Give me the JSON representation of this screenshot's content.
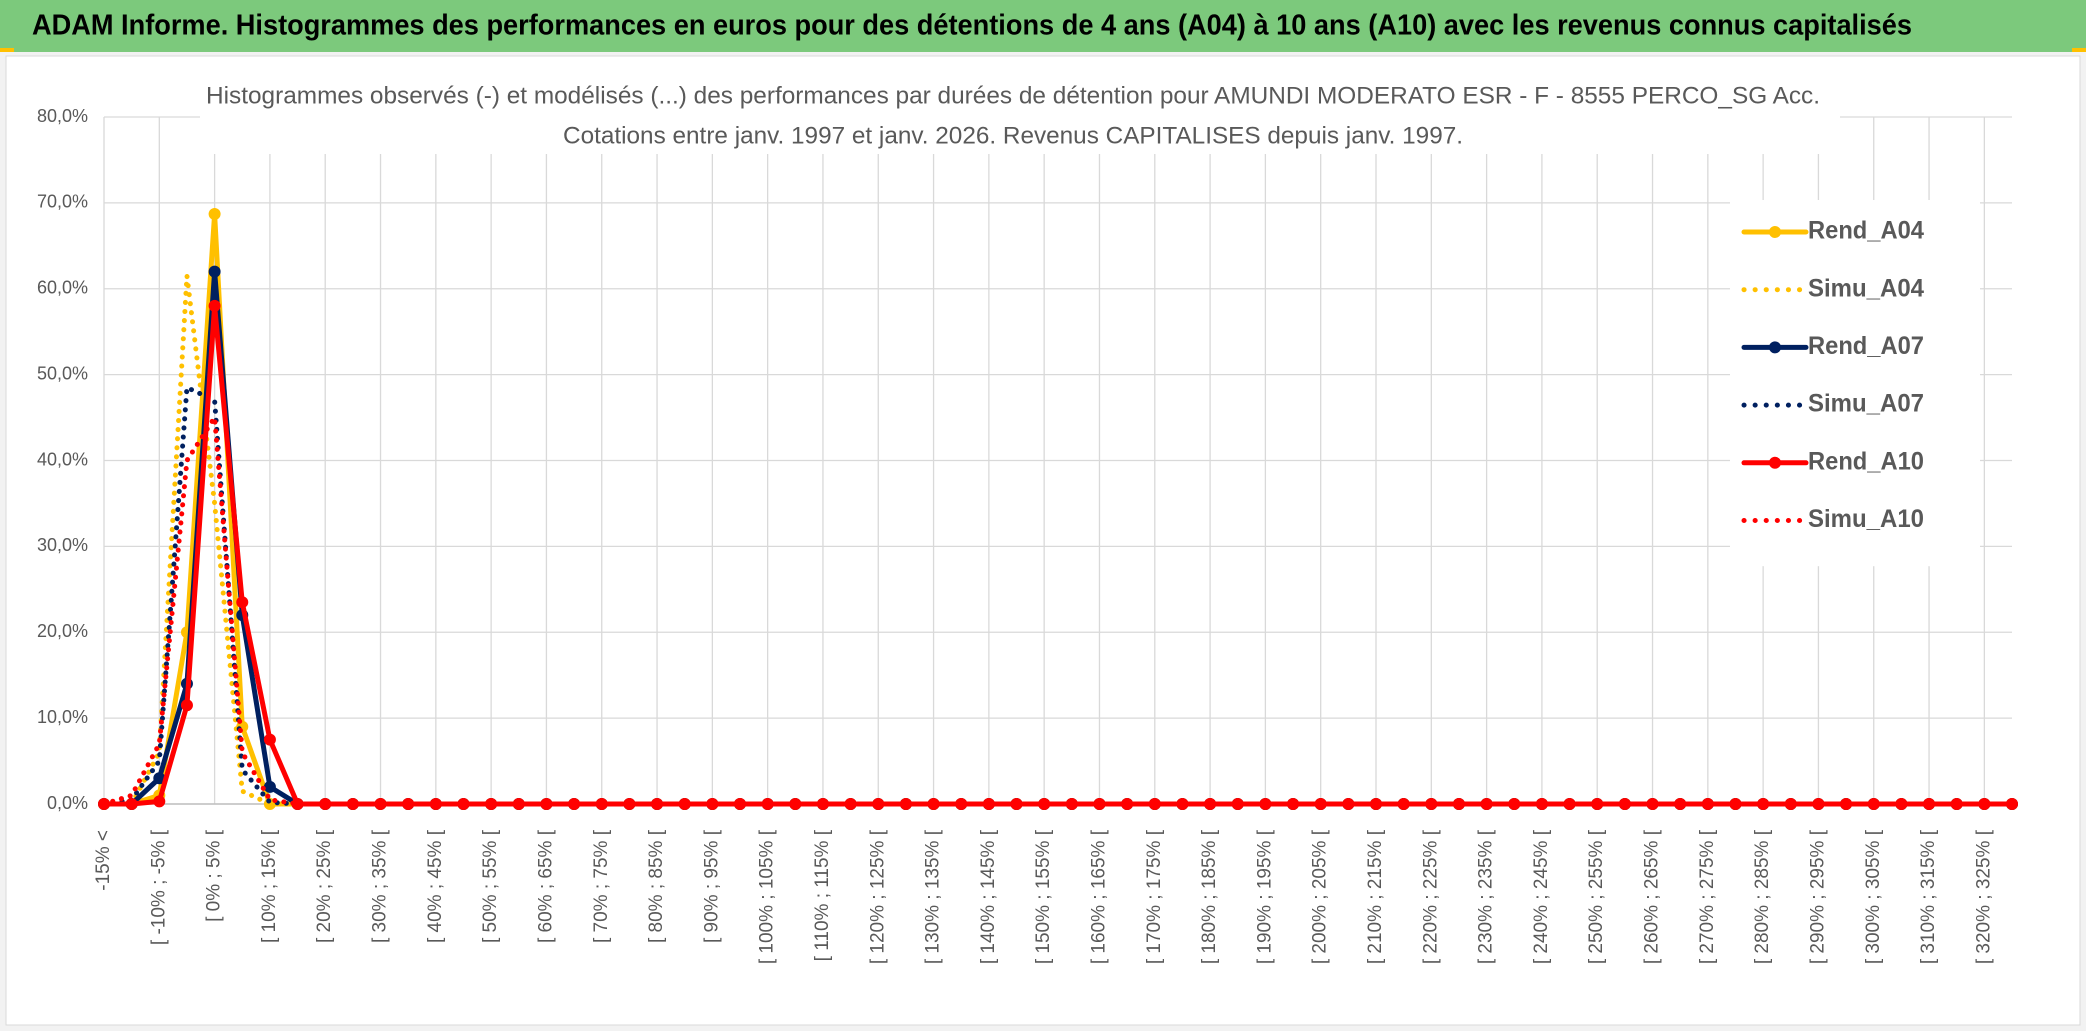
{
  "page_title": "ADAM Informe. Histogrammes des performances en euros pour des détentions de 4 ans (A04) à 10 ans (A10) avec les revenus connus capitalisés",
  "chart_data": {
    "type": "line",
    "title": "Histogrammes observés (-) et modélisés (...) des performances par durées de détention pour AMUNDI MODERATO ESR - F - 8555 PERCO_SG Acc.",
    "subtitle": "Cotations entre janv. 1997 et janv. 2026. Revenus CAPITALISES depuis janv. 1997.",
    "categories": [
      "-15% <",
      null,
      "[ -10% ; -5% [",
      null,
      "[ 0% ; 5% [",
      null,
      "[ 10% ; 15% [",
      null,
      "[ 20% ; 25% [",
      null,
      "[ 30% ; 35% [",
      null,
      "[ 40% ; 45% [",
      null,
      "[ 50% ; 55% [",
      null,
      "[ 60% ; 65% [",
      null,
      "[ 70% ; 75% [",
      null,
      "[ 80% ; 85% [",
      null,
      "[ 90% ; 95% [",
      null,
      "[ 100% ; 105% [",
      null,
      "[ 110% ; 115% [",
      null,
      "[ 120% ; 125% [",
      null,
      "[ 130% ; 135% [",
      null,
      "[ 140% ; 145% [",
      null,
      "[ 150% ; 155% [",
      null,
      "[ 160% ; 165% [",
      null,
      "[ 170% ; 175% [",
      null,
      "[ 180% ; 185% [",
      null,
      "[ 190% ; 195% [",
      null,
      "[ 200% ; 205% [",
      null,
      "[ 210% ; 215% [",
      null,
      "[ 220% ; 225% [",
      null,
      "[ 230% ; 235% [",
      null,
      "[ 240% ; 245% [",
      null,
      "[ 250% ; 255% [",
      null,
      "[ 260% ; 265% [",
      null,
      "[ 270% ; 275% [",
      null,
      "[ 280% ; 285% [",
      null,
      "[ 290% ; 295% [",
      null,
      "[ 300% ; 305% [",
      null,
      "[ 310% ; 315% [",
      null,
      "[ 320% ; 325% [",
      null
    ],
    "ylim": [
      0,
      80
    ],
    "yticks": [
      {
        "value": 0,
        "label": "0,0%"
      },
      {
        "value": 10,
        "label": "10,0%"
      },
      {
        "value": 20,
        "label": "20,0%"
      },
      {
        "value": 30,
        "label": "30,0%"
      },
      {
        "value": 40,
        "label": "40,0%"
      },
      {
        "value": 50,
        "label": "50,0%"
      },
      {
        "value": 60,
        "label": "60,0%"
      },
      {
        "value": 70,
        "label": "70,0%"
      },
      {
        "value": 80,
        "label": "80,0%"
      }
    ],
    "grid": true,
    "legend": "right",
    "series": [
      {
        "name": "Rend_A04",
        "color": "#ffc000",
        "style": "solid",
        "markers": true,
        "values": [
          0,
          0,
          1,
          20,
          68.7,
          9,
          0,
          0,
          0,
          0,
          0,
          0,
          0,
          0,
          0,
          0,
          0,
          0,
          0,
          0,
          0,
          0,
          0,
          0,
          0,
          0,
          0,
          0,
          0,
          0,
          0,
          0,
          0,
          0,
          0,
          0,
          0,
          0,
          0,
          0,
          0,
          0,
          0,
          0,
          0,
          0,
          0,
          0,
          0,
          0,
          0,
          0,
          0,
          0,
          0,
          0,
          0,
          0,
          0,
          0,
          0,
          0,
          0,
          0,
          0,
          0,
          0,
          0,
          0,
          0
        ]
      },
      {
        "name": "Simu_A04",
        "color": "#ffc000",
        "style": "dotted",
        "markers": false,
        "values": [
          0,
          0,
          6,
          61.5,
          35,
          1.5,
          0,
          0,
          0,
          0,
          0,
          0,
          0,
          0,
          0,
          0,
          0,
          0,
          0,
          0,
          0,
          0,
          0,
          0,
          0,
          0,
          0,
          0,
          0,
          0,
          0,
          0,
          0,
          0,
          0,
          0,
          0,
          0,
          0,
          0,
          0,
          0,
          0,
          0,
          0,
          0,
          0,
          0,
          0,
          0,
          0,
          0,
          0,
          0,
          0,
          0,
          0,
          0,
          0,
          0,
          0,
          0,
          0,
          0,
          0,
          0,
          0,
          0,
          0,
          0
        ]
      },
      {
        "name": "Rend_A07",
        "color": "#002060",
        "style": "solid",
        "markers": true,
        "values": [
          0,
          0,
          3,
          14,
          62,
          22,
          2,
          0,
          0,
          0,
          0,
          0,
          0,
          0,
          0,
          0,
          0,
          0,
          0,
          0,
          0,
          0,
          0,
          0,
          0,
          0,
          0,
          0,
          0,
          0,
          0,
          0,
          0,
          0,
          0,
          0,
          0,
          0,
          0,
          0,
          0,
          0,
          0,
          0,
          0,
          0,
          0,
          0,
          0,
          0,
          0,
          0,
          0,
          0,
          0,
          0,
          0,
          0,
          0,
          0,
          0,
          0,
          0,
          0,
          0,
          0,
          0,
          0,
          0,
          0
        ]
      },
      {
        "name": "Simu_A07",
        "color": "#002060",
        "style": "dotted",
        "markers": false,
        "values": [
          0,
          0.5,
          5,
          48.5,
          47,
          4,
          0.2,
          0,
          0,
          0,
          0,
          0,
          0,
          0,
          0,
          0,
          0,
          0,
          0,
          0,
          0,
          0,
          0,
          0,
          0,
          0,
          0,
          0,
          0,
          0,
          0,
          0,
          0,
          0,
          0,
          0,
          0,
          0,
          0,
          0,
          0,
          0,
          0,
          0,
          0,
          0,
          0,
          0,
          0,
          0,
          0,
          0,
          0,
          0,
          0,
          0,
          0,
          0,
          0,
          0,
          0,
          0,
          0,
          0,
          0,
          0,
          0,
          0,
          0,
          0
        ]
      },
      {
        "name": "Rend_A10",
        "color": "#ff0000",
        "style": "solid",
        "markers": true,
        "values": [
          0,
          0,
          0.3,
          11.5,
          58,
          23.5,
          7.5,
          0,
          0,
          0,
          0,
          0,
          0,
          0,
          0,
          0,
          0,
          0,
          0,
          0,
          0,
          0,
          0,
          0,
          0,
          0,
          0,
          0,
          0,
          0,
          0,
          0,
          0,
          0,
          0,
          0,
          0,
          0,
          0,
          0,
          0,
          0,
          0,
          0,
          0,
          0,
          0,
          0,
          0,
          0,
          0,
          0,
          0,
          0,
          0,
          0,
          0,
          0,
          0,
          0,
          0,
          0,
          0,
          0,
          0,
          0,
          0,
          0,
          0,
          0
        ]
      },
      {
        "name": "Simu_A10",
        "color": "#ff0000",
        "style": "dotted",
        "markers": false,
        "values": [
          0,
          1,
          7,
          40,
          45,
          6,
          0.5,
          0,
          0,
          0,
          0,
          0,
          0,
          0,
          0,
          0,
          0,
          0,
          0,
          0,
          0,
          0,
          0,
          0,
          0,
          0,
          0,
          0,
          0,
          0,
          0,
          0,
          0,
          0,
          0,
          0,
          0,
          0,
          0,
          0,
          0,
          0,
          0,
          0,
          0,
          0,
          0,
          0,
          0,
          0,
          0,
          0,
          0,
          0,
          0,
          0,
          0,
          0,
          0,
          0,
          0,
          0,
          0,
          0,
          0,
          0,
          0,
          0,
          0,
          0
        ]
      }
    ]
  }
}
